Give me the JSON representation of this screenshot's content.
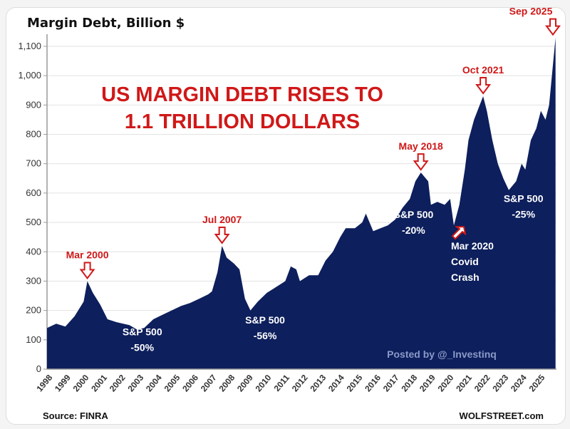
{
  "chart_data": {
    "type": "area",
    "title": "Margin Debt, Billion $",
    "headline": [
      "US MARGIN DEBT RISES TO",
      "1.1 TRILLION DOLLARS"
    ],
    "xlabel": "",
    "ylabel": "",
    "ylim": [
      0,
      1100
    ],
    "yticks": [
      "0",
      "100",
      "200",
      "300",
      "400",
      "500",
      "600",
      "700",
      "800",
      "900",
      "1,000",
      "1,100"
    ],
    "xticks": [
      "1998",
      "1999",
      "2000",
      "2001",
      "2002",
      "2003",
      "2004",
      "2005",
      "2006",
      "2007",
      "2008",
      "2009",
      "2010",
      "2011",
      "2012",
      "2013",
      "2014",
      "2015",
      "2016",
      "2017",
      "2018",
      "2019",
      "2020",
      "2021",
      "2022",
      "2023",
      "2024",
      "2025"
    ],
    "grid": true,
    "fill_color": "#0d1f5c",
    "accent_color": "#d01818",
    "series": [
      {
        "x": [
          1998.0,
          1998.5,
          1999.0,
          1999.5,
          2000.0,
          2000.2,
          2000.5,
          2000.9,
          2001.3,
          2001.8,
          2002.5,
          2002.9,
          2003.3,
          2003.8,
          2004.3,
          2004.8,
          2005.3,
          2005.8,
          2006.3,
          2006.8,
          2007.0,
          2007.3,
          2007.55,
          2007.8,
          2008.2,
          2008.5,
          2008.8,
          2009.1,
          2009.5,
          2010.0,
          2010.5,
          2011.0,
          2011.3,
          2011.6,
          2011.8,
          2012.3,
          2012.8,
          2013.2,
          2013.6,
          2014.0,
          2014.3,
          2014.8,
          2015.2,
          2015.4,
          2015.8,
          2016.2,
          2016.6,
          2017.0,
          2017.4,
          2017.8,
          2018.1,
          2018.4,
          2018.8,
          2018.95,
          2019.3,
          2019.7,
          2020.0,
          2020.2,
          2020.5,
          2020.8,
          2021.0,
          2021.3,
          2021.8,
          2022.0,
          2022.3,
          2022.6,
          2022.9,
          2023.2,
          2023.6,
          2023.9,
          2024.1,
          2024.4,
          2024.7,
          2024.95,
          2025.2,
          2025.4,
          2025.55,
          2025.75
        ],
        "values": [
          140,
          155,
          145,
          180,
          230,
          300,
          260,
          220,
          170,
          160,
          150,
          135,
          140,
          170,
          185,
          200,
          215,
          225,
          240,
          255,
          265,
          330,
          420,
          380,
          360,
          340,
          240,
          200,
          230,
          260,
          280,
          300,
          350,
          340,
          300,
          320,
          320,
          370,
          400,
          450,
          480,
          480,
          500,
          530,
          470,
          480,
          490,
          510,
          550,
          580,
          640,
          670,
          640,
          560,
          570,
          560,
          580,
          490,
          560,
          680,
          780,
          850,
          930,
          880,
          780,
          700,
          650,
          610,
          640,
          700,
          680,
          780,
          820,
          880,
          850,
          900,
          1000,
          1130
        ]
      }
    ],
    "annotations": [
      {
        "label": "Mar 2000",
        "type": "peak",
        "x": 2000.2,
        "y": 300
      },
      {
        "label": "Jul 2007",
        "type": "peak",
        "x": 2007.55,
        "y": 420
      },
      {
        "label": "May 2018",
        "type": "peak",
        "x": 2018.4,
        "y": 670
      },
      {
        "label": "Oct 2021",
        "type": "peak",
        "x": 2021.8,
        "y": 930
      },
      {
        "label": "Sep 2025",
        "type": "peak",
        "x": 2025.75,
        "y": 1130
      },
      {
        "lines": [
          "S&P 500",
          "-50%"
        ],
        "type": "note",
        "x": 2003.2,
        "y": 115
      },
      {
        "lines": [
          "S&P 500",
          "-56%"
        ],
        "type": "note",
        "x": 2009.9,
        "y": 155
      },
      {
        "lines": [
          "S&P 500",
          "-20%"
        ],
        "type": "note",
        "x": 2018.0,
        "y": 515
      },
      {
        "lines": [
          "S&P 500",
          "-25%"
        ],
        "type": "note",
        "x": 2024.0,
        "y": 570
      },
      {
        "lines": [
          "Mar 2020",
          "Covid",
          "Crash"
        ],
        "type": "crash",
        "x": 2020.2,
        "y": 490
      }
    ],
    "posted_by": "Posted by @_Investinq",
    "source": "Source: FINRA",
    "brand": "WOLFSTREET.com"
  }
}
